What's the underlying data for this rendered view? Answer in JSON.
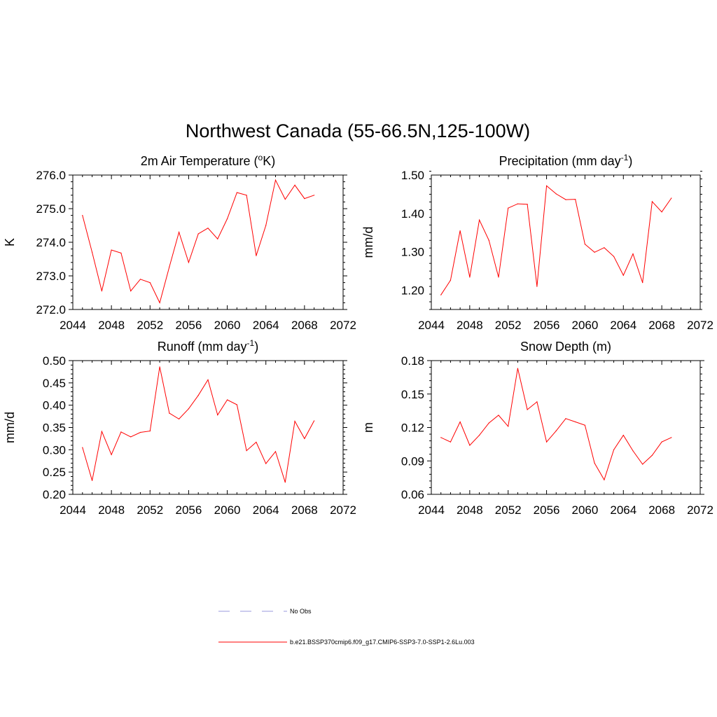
{
  "figure": {
    "title": "Northwest Canada (55-66.5N,125-100W)"
  },
  "chart_data": [
    {
      "type": "line",
      "title": "2m Air Temperature (",
      "title_sup": "o",
      "title_after": "K)",
      "ylabel": "K",
      "xlim": [
        2044,
        2072
      ],
      "ylim": [
        272.0,
        276.0
      ],
      "xticks": [
        2044,
        2048,
        2052,
        2056,
        2060,
        2064,
        2068,
        2072
      ],
      "yticks": [
        272.0,
        273.0,
        274.0,
        275.0,
        276.0
      ],
      "ytick_labels": [
        "272.0",
        "273.0",
        "274.0",
        "275.0",
        "276.0"
      ],
      "yminor": 0.2,
      "x": [
        2045,
        2046,
        2047,
        2048,
        2049,
        2050,
        2051,
        2052,
        2053,
        2054,
        2055,
        2056,
        2057,
        2058,
        2059,
        2060,
        2061,
        2062,
        2063,
        2064,
        2065,
        2066,
        2067,
        2068,
        2069
      ],
      "series": [
        {
          "color": "#ff0000",
          "values": [
            274.8,
            273.7,
            272.55,
            273.77,
            273.68,
            272.55,
            272.9,
            272.8,
            272.2,
            273.27,
            274.3,
            273.4,
            274.25,
            274.42,
            274.1,
            274.7,
            275.48,
            275.4,
            273.6,
            274.5,
            275.85,
            275.28,
            275.7,
            275.3,
            275.4
          ]
        }
      ]
    },
    {
      "type": "line",
      "title": "Precipitation (mm day",
      "title_sup": "-1",
      "title_after": ")",
      "ylabel": "mm/d",
      "xlim": [
        2044,
        2072
      ],
      "ylim": [
        1.15,
        1.5
      ],
      "xticks": [
        2044,
        2048,
        2052,
        2056,
        2060,
        2064,
        2068,
        2072
      ],
      "yticks": [
        1.2,
        1.3,
        1.4,
        1.5
      ],
      "ytick_labels": [
        "1.20",
        "1.30",
        "1.40",
        "1.50"
      ],
      "yminor": 0.02,
      "x": [
        2045,
        2046,
        2047,
        2048,
        2049,
        2050,
        2051,
        2052,
        2053,
        2054,
        2055,
        2056,
        2057,
        2058,
        2059,
        2060,
        2061,
        2062,
        2063,
        2064,
        2065,
        2066,
        2067,
        2068,
        2069
      ],
      "series": [
        {
          "color": "#ff0000",
          "values": [
            1.188,
            1.226,
            1.355,
            1.234,
            1.383,
            1.33,
            1.234,
            1.414,
            1.425,
            1.424,
            1.21,
            1.472,
            1.451,
            1.436,
            1.437,
            1.32,
            1.299,
            1.311,
            1.288,
            1.239,
            1.295,
            1.22,
            1.431,
            1.404,
            1.44
          ]
        }
      ]
    },
    {
      "type": "line",
      "title": "Runoff (mm day",
      "title_sup": "-1",
      "title_after": ")",
      "ylabel": "mm/d",
      "xlim": [
        2044,
        2072
      ],
      "ylim": [
        0.2,
        0.5
      ],
      "xticks": [
        2044,
        2048,
        2052,
        2056,
        2060,
        2064,
        2068,
        2072
      ],
      "yticks": [
        0.2,
        0.25,
        0.3,
        0.35,
        0.4,
        0.45,
        0.5
      ],
      "ytick_labels": [
        "0.20",
        "0.25",
        "0.30",
        "0.35",
        "0.40",
        "0.45",
        "0.50"
      ],
      "yminor": 0.01,
      "x": [
        2045,
        2046,
        2047,
        2048,
        2049,
        2050,
        2051,
        2052,
        2053,
        2054,
        2055,
        2056,
        2057,
        2058,
        2059,
        2060,
        2061,
        2062,
        2063,
        2064,
        2065,
        2066,
        2067,
        2068,
        2069
      ],
      "series": [
        {
          "color": "#ff0000",
          "values": [
            0.305,
            0.231,
            0.341,
            0.289,
            0.34,
            0.329,
            0.339,
            0.342,
            0.486,
            0.382,
            0.369,
            0.392,
            0.422,
            0.457,
            0.378,
            0.412,
            0.401,
            0.298,
            0.317,
            0.269,
            0.296,
            0.227,
            0.364,
            0.325,
            0.365
          ]
        }
      ]
    },
    {
      "type": "line",
      "title": "Snow Depth (m)",
      "title_sup": "",
      "title_after": "",
      "ylabel": "m",
      "xlim": [
        2044,
        2072
      ],
      "ylim": [
        0.06,
        0.18
      ],
      "xticks": [
        2044,
        2048,
        2052,
        2056,
        2060,
        2064,
        2068,
        2072
      ],
      "yticks": [
        0.06,
        0.09,
        0.12,
        0.15,
        0.18
      ],
      "ytick_labels": [
        "0.06",
        "0.09",
        "0.12",
        "0.15",
        "0.18"
      ],
      "yminor": 0.006,
      "x": [
        2045,
        2046,
        2047,
        2048,
        2049,
        2050,
        2051,
        2052,
        2053,
        2054,
        2055,
        2056,
        2057,
        2058,
        2059,
        2060,
        2061,
        2062,
        2063,
        2064,
        2065,
        2066,
        2067,
        2068,
        2069
      ],
      "series": [
        {
          "color": "#ff0000",
          "values": [
            0.111,
            0.107,
            0.125,
            0.104,
            0.113,
            0.124,
            0.131,
            0.121,
            0.173,
            0.136,
            0.143,
            0.107,
            0.117,
            0.128,
            0.125,
            0.122,
            0.088,
            0.073,
            0.1,
            0.113,
            0.099,
            0.087,
            0.095,
            0.107,
            0.111
          ]
        }
      ]
    }
  ],
  "legend": [
    {
      "label": "No Obs",
      "color": "#9999dd",
      "dash": "dashed"
    },
    {
      "label": "b.e21.BSSP370cmip6.f09_g17.CMIP6-SSP3-7.0-SSP1-2.6Lu.003",
      "color": "#ff0000",
      "dash": "solid"
    }
  ]
}
